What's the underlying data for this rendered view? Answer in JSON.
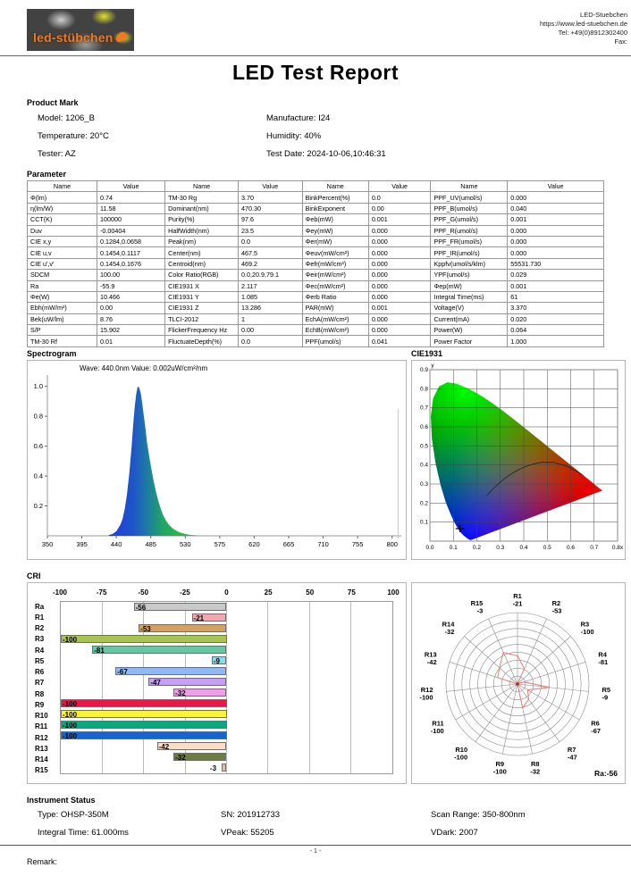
{
  "header": {
    "logo_text": "led-stübchen",
    "company": "LED-Stuebchen",
    "website": "https://www.led-stuebchen.de",
    "tel": "Tel: +49(0)8912302400",
    "fax": "Fax:"
  },
  "title": "LED Test Report",
  "product_mark": {
    "heading": "Product Mark",
    "left": [
      {
        "label": "Model:",
        "value": "1206_B"
      },
      {
        "label": "Temperature:",
        "value": "20°C"
      },
      {
        "label": "Tester:",
        "value": "AZ"
      }
    ],
    "right": [
      {
        "label": "Manufacture:",
        "value": "I24"
      },
      {
        "label": "Humidity:",
        "value": "40%"
      },
      {
        "label": "Test Date:",
        "value": "2024-10-06,10:46:31"
      }
    ]
  },
  "parameter": {
    "heading": "Parameter",
    "col_headers": [
      "Name",
      "Value",
      "Name",
      "Value",
      "Name",
      "Value",
      "Name",
      "Value"
    ],
    "rows": [
      [
        "Φ(lm)",
        "0.74",
        "TM-30 Rg",
        "3.70",
        "BinkPercent(%)",
        "0.0",
        "PPF_UV(umol/s)",
        "0.000"
      ],
      [
        "η(lm/W)",
        "11.58",
        "Dominant(nm)",
        "470.30",
        "BinkExponent",
        "0.00",
        "PPF_B(umol/s)",
        "0.040"
      ],
      [
        "CCT(K)",
        "100000",
        "Purity(%)",
        "97.6",
        "Φeb(mW)",
        "0.001",
        "PPF_G(umol/s)",
        "0.001"
      ],
      [
        "Duv",
        "-0.00404",
        "HalfWidth(nm)",
        "23.5",
        "Φey(mW)",
        "0.000",
        "PPF_R(umol/s)",
        "0.000"
      ],
      [
        "CIE x,y",
        "0.1284,0.0658",
        "Peak(nm)",
        "0.0",
        "Φer(mW)",
        "0.000",
        "PPF_FR(umol/s)",
        "0.000"
      ],
      [
        "CIE u,v",
        "0.1454,0.1117",
        "Center(nm)",
        "467.5",
        "Φeuv(mW/cm²)",
        "0.000",
        "PPF_IR(umol/s)",
        "0.000"
      ],
      [
        "CIE u',v'",
        "0.1454,0.1676",
        "Centroid(nm)",
        "469.2",
        "Φefr(mW/cm²)",
        "0.000",
        "Kppfv(umol/s/klm)",
        "55531.730"
      ],
      [
        "SDCM",
        "100.00",
        "Color Ratio(RGB)",
        "0.0,20.9,79.1",
        "Φeir(mW/cm²)",
        "0.000",
        "YPF(umol/s)",
        "0.029"
      ],
      [
        "Ra",
        "-55.9",
        "CIE1931 X",
        "2.117",
        "Φec(mW/cm²)",
        "0.000",
        "Φep(mW)",
        "0.001"
      ],
      [
        "Φe(W)",
        "10.466",
        "CIE1931 Y",
        "1.085",
        "Φerb Ratio",
        "0.000",
        "Integral Time(ms)",
        "61"
      ],
      [
        "Ebh(mW/m²)",
        "0.00",
        "CIE1931 Z",
        "13.286",
        "PAR(mW)",
        "0.001",
        "Voltage(V)",
        "3.370"
      ],
      [
        "Bek(uW/lm)",
        "8.76",
        "TLCI-2012",
        "1",
        "EchA(mW/cm²)",
        "0.000",
        "Current(mA)",
        "0.020"
      ],
      [
        "S/P",
        "15.902",
        "FlickerFrequency Hz",
        "0.00",
        "EchB(mW/cm²)",
        "0.000",
        "Power(W)",
        "0.064"
      ],
      [
        "TM-30 Rf",
        "0.01",
        "FluctuateDepth(%)",
        "0.0",
        "PPF(umol/s)",
        "0.041",
        "Power Factor",
        "1.000"
      ]
    ]
  },
  "sections": {
    "spectrogram_heading": "Spectrogram",
    "cie_heading": "CIE1931",
    "cri_heading": "CRI"
  },
  "chart_data": [
    {
      "id": "spectrogram",
      "type": "area",
      "title": "Spectrogram",
      "annotation": "Wave: 440.0nm Value: 0.002uW/cm²/nm",
      "points": [
        [
          430,
          0.005
        ],
        [
          435,
          0.012
        ],
        [
          440,
          0.03
        ],
        [
          445,
          0.07
        ],
        [
          448,
          0.11
        ],
        [
          451,
          0.18
        ],
        [
          454,
          0.28
        ],
        [
          457,
          0.42
        ],
        [
          460,
          0.6
        ],
        [
          462,
          0.74
        ],
        [
          464,
          0.86
        ],
        [
          466,
          0.95
        ],
        [
          468,
          1.0
        ],
        [
          470,
          0.99
        ],
        [
          472,
          0.95
        ],
        [
          474,
          0.88
        ],
        [
          476,
          0.8
        ],
        [
          478,
          0.72
        ],
        [
          480,
          0.63
        ],
        [
          483,
          0.53
        ],
        [
          486,
          0.44
        ],
        [
          489,
          0.36
        ],
        [
          492,
          0.29
        ],
        [
          495,
          0.23
        ],
        [
          498,
          0.18
        ],
        [
          501,
          0.14
        ],
        [
          505,
          0.1
        ],
        [
          509,
          0.072
        ],
        [
          513,
          0.052
        ],
        [
          517,
          0.038
        ],
        [
          521,
          0.027
        ],
        [
          525,
          0.019
        ],
        [
          530,
          0.012
        ],
        [
          535,
          0.008
        ],
        [
          540,
          0.005
        ],
        [
          546,
          0.003
        ],
        [
          552,
          0.001
        ],
        [
          558,
          0.0
        ]
      ],
      "xticks": [
        350,
        395,
        440,
        485,
        530,
        575,
        620,
        665,
        710,
        755,
        800
      ],
      "yticks": [
        0.2,
        0.4,
        0.6,
        0.8,
        1.0
      ],
      "xlim": [
        350,
        812
      ],
      "ylim": [
        0,
        1.04
      ],
      "marker_line_x": 808,
      "marker_line_color": "#f2b8b4",
      "gradient": [
        "#1E3CDC",
        "#1E55C8",
        "#1E7DA0",
        "#21A566",
        "#2BB84A",
        "#35C53E"
      ]
    },
    {
      "id": "cie1931",
      "type": "scatter",
      "title": "CIE1931",
      "point": [
        0.1284,
        0.0658
      ],
      "xlim": [
        0,
        0.8
      ],
      "ylim": [
        0,
        0.9
      ],
      "xticks": [
        "0.0",
        "0.1",
        "0.2",
        "0.3",
        "0.4",
        "0.5",
        "0.6",
        "0.7",
        "0.8x"
      ],
      "yticks": [
        "0.1",
        "0.2",
        "0.3",
        "0.4",
        "0.5",
        "0.6",
        "0.7",
        "0.8",
        "0.9"
      ],
      "ylabel": "y",
      "locus": [
        [
          0.1741,
          0.005
        ],
        [
          0.166,
          0.009
        ],
        [
          0.1566,
          0.0177
        ],
        [
          0.144,
          0.0297
        ],
        [
          0.1355,
          0.0399
        ],
        [
          0.1241,
          0.0578
        ],
        [
          0.1096,
          0.0868
        ],
        [
          0.0913,
          0.1327
        ],
        [
          0.0687,
          0.2007
        ],
        [
          0.0454,
          0.295
        ],
        [
          0.0235,
          0.4127
        ],
        [
          0.0082,
          0.5384
        ],
        [
          0.0039,
          0.6548
        ],
        [
          0.0139,
          0.7502
        ],
        [
          0.0389,
          0.812
        ],
        [
          0.0743,
          0.8338
        ],
        [
          0.1142,
          0.8262
        ],
        [
          0.1547,
          0.8059
        ],
        [
          0.1929,
          0.7816
        ],
        [
          0.2296,
          0.7543
        ],
        [
          0.2658,
          0.7243
        ],
        [
          0.3016,
          0.6923
        ],
        [
          0.3373,
          0.6589
        ],
        [
          0.3731,
          0.6245
        ],
        [
          0.4087,
          0.5896
        ],
        [
          0.4441,
          0.5547
        ],
        [
          0.4788,
          0.5202
        ],
        [
          0.5125,
          0.4866
        ],
        [
          0.5448,
          0.4544
        ],
        [
          0.5752,
          0.4242
        ],
        [
          0.6029,
          0.3965
        ],
        [
          0.627,
          0.3725
        ],
        [
          0.6482,
          0.3514
        ],
        [
          0.6658,
          0.334
        ],
        [
          0.6915,
          0.3083
        ],
        [
          0.7079,
          0.292
        ],
        [
          0.719,
          0.2809
        ],
        [
          0.727,
          0.273
        ],
        [
          0.7347,
          0.2653
        ]
      ],
      "planckian": [
        [
          0.6528,
          0.3444
        ],
        [
          0.6249,
          0.3676
        ],
        [
          0.5857,
          0.3931
        ],
        [
          0.5267,
          0.4133
        ],
        [
          0.477,
          0.4137
        ],
        [
          0.4369,
          0.4041
        ],
        [
          0.4053,
          0.3907
        ],
        [
          0.3805,
          0.3768
        ],
        [
          0.3451,
          0.3516
        ],
        [
          0.3221,
          0.3318
        ],
        [
          0.2952,
          0.3048
        ],
        [
          0.2807,
          0.2884
        ],
        [
          0.2637,
          0.2673
        ],
        [
          0.2565,
          0.2577
        ],
        [
          0.2472,
          0.2448
        ],
        [
          0.2426,
          0.2381
        ]
      ]
    },
    {
      "id": "cri",
      "type": "bar",
      "title": "CRI",
      "categories": [
        "Ra",
        "R1",
        "R2",
        "R3",
        "R4",
        "R5",
        "R6",
        "R7",
        "R8",
        "R9",
        "R10",
        "R11",
        "R12",
        "R13",
        "R14",
        "R15"
      ],
      "values": [
        -56,
        -21,
        -53,
        -100,
        -81,
        -9,
        -67,
        -47,
        -32,
        -100,
        -100,
        -100,
        -100,
        -42,
        -32,
        -3
      ],
      "colors": [
        "#c9c9c9",
        "#f2a7b2",
        "#d2a265",
        "#a9c350",
        "#69c6a3",
        "#8adde6",
        "#90b8f2",
        "#c6a0f5",
        "#ef9fe9",
        "#e5194a",
        "#fbf23a",
        "#07a97e",
        "#1565cd",
        "#f9ddc8",
        "#6d7c45",
        "#dfc09a"
      ],
      "xticks": [
        -100,
        -75,
        -50,
        -25,
        0,
        25,
        50,
        75,
        100
      ],
      "xlim": [
        -100,
        100
      ]
    },
    {
      "id": "radar",
      "type": "radar",
      "labels": [
        "R1",
        "R2",
        "R3",
        "R4",
        "R5",
        "R6",
        "R7",
        "R8",
        "R9",
        "R10",
        "R11",
        "R12",
        "R13",
        "R14",
        "R15"
      ],
      "values": [
        -21,
        -53,
        -100,
        -81,
        -9,
        -67,
        -47,
        -32,
        -100,
        -100,
        -100,
        -100,
        -42,
        -32,
        -3
      ],
      "rings": 9,
      "ra_label": "Ra:-56",
      "line_color": "#e87c78"
    }
  ],
  "instrument_status": {
    "heading": "Instrument Status",
    "rows": [
      [
        "Type: OHSP-350M",
        "SN: 201912733",
        "Scan Range: 350-800nm"
      ],
      [
        "Integral Time: 61.000ms",
        "VPeak: 55205",
        "VDark: 2007"
      ]
    ]
  },
  "footer": {
    "page": "- 1 -",
    "remark": "Remark:"
  }
}
